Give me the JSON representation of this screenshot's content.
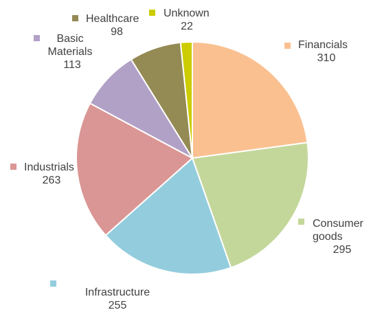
{
  "chart_data": {
    "type": "pie",
    "start_angle_deg": 0,
    "direction": "clockwise",
    "slices": [
      {
        "name": "Financials",
        "value": 310,
        "color": "#FAC090"
      },
      {
        "name": "Consumer goods",
        "value": 295,
        "color": "#C4D79B"
      },
      {
        "name": "Infrastructure",
        "value": 255,
        "color": "#93CDDD"
      },
      {
        "name": "Industrials",
        "value": 263,
        "color": "#DA9694"
      },
      {
        "name": "Basic Materials",
        "value": 113,
        "color": "#B2A1C7"
      },
      {
        "name": "Healthcare",
        "value": 98,
        "color": "#948A54"
      },
      {
        "name": "Unknown",
        "value": 22,
        "color": "#CCCC00"
      }
    ],
    "data_labels": [
      {
        "lines": [
          "Financials"
        ],
        "value": "310"
      },
      {
        "lines": [
          "Consumer",
          "goods"
        ],
        "value": "295"
      },
      {
        "lines": [
          "Infrastructure"
        ],
        "value": "255"
      },
      {
        "lines": [
          "Industrials"
        ],
        "value": "263"
      },
      {
        "lines": [
          "Basic",
          "Materials"
        ],
        "value": "113"
      },
      {
        "lines": [
          "Healthcare"
        ],
        "value": "98"
      },
      {
        "lines": [
          "Unknown"
        ],
        "value": "22"
      }
    ]
  }
}
